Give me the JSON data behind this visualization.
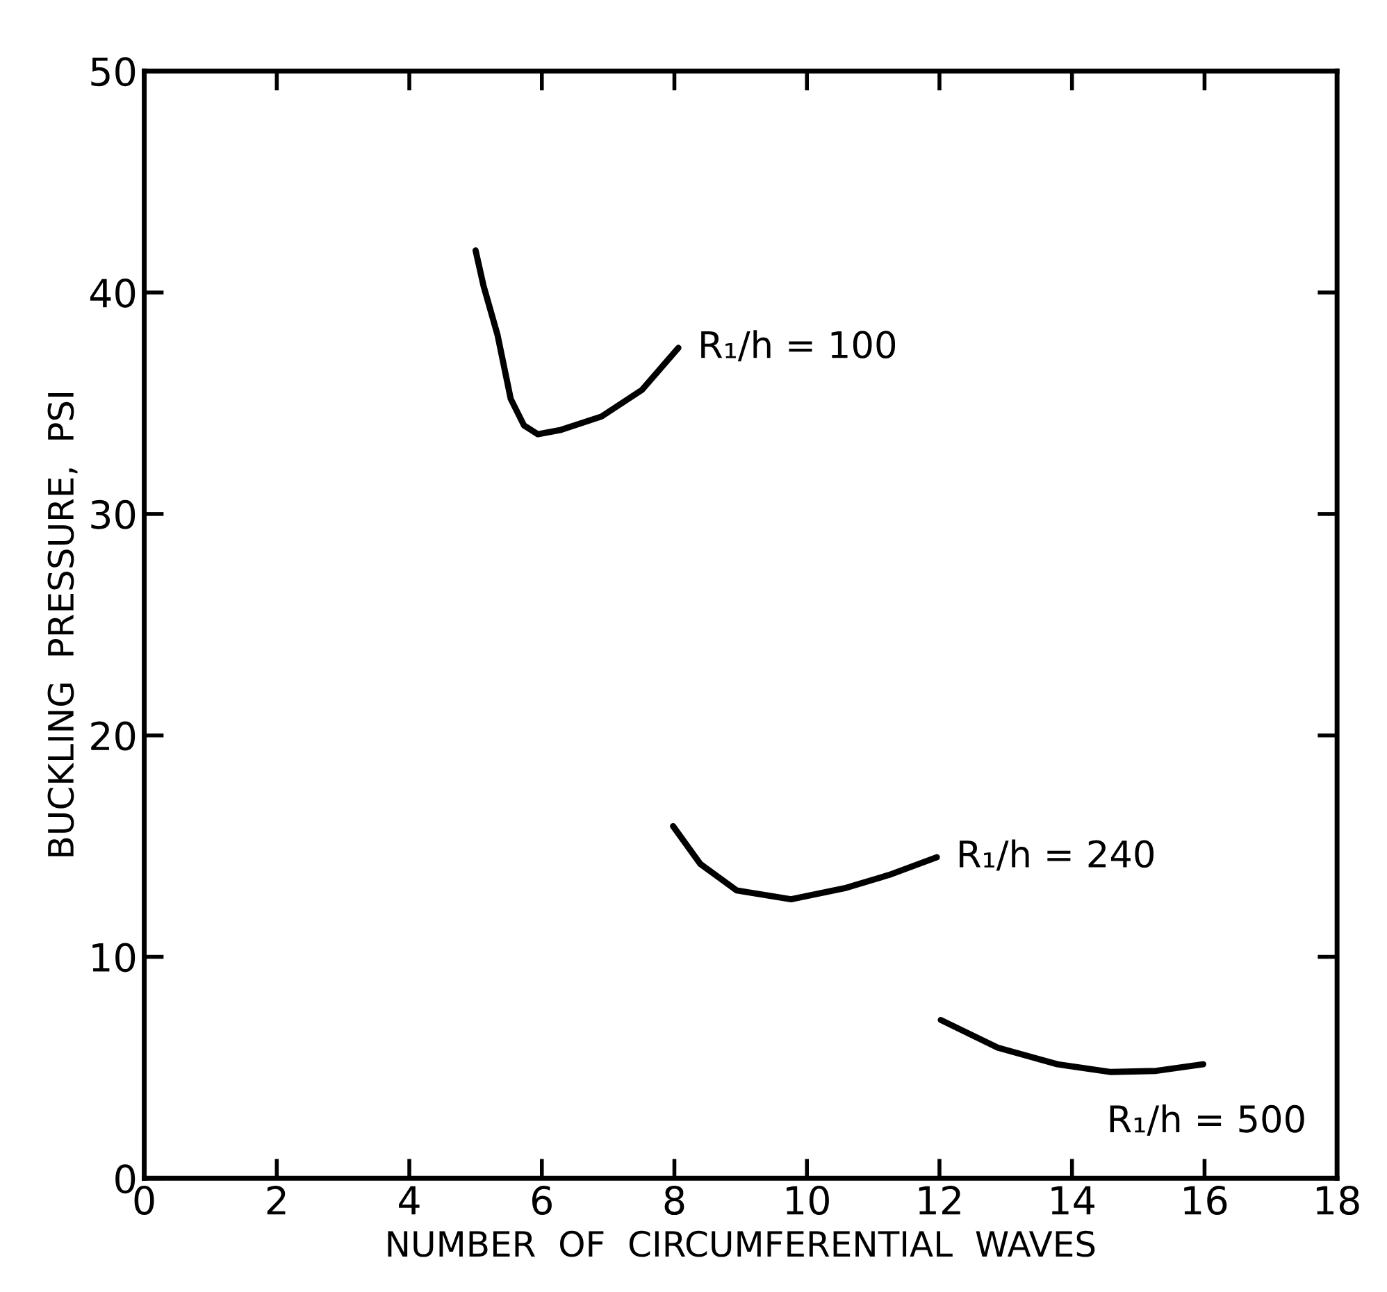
{
  "chart_data": {
    "type": "line",
    "xlabel": "NUMBER  OF  CIRCUMFERENTIAL  WAVES",
    "ylabel": "BUCKLING  PRESSURE,  PSI",
    "series": [
      {
        "color": "#000000",
        "x": [
          5.0,
          5.12,
          5.33,
          5.53,
          5.73,
          5.94,
          6.29,
          6.9,
          7.51,
          8.06
        ],
        "values": [
          41.9,
          40.3,
          38.1,
          35.2,
          34.0,
          33.6,
          33.8,
          34.4,
          35.6,
          37.5
        ]
      },
      {
        "color": "#000000",
        "x": [
          7.98,
          8.39,
          8.94,
          9.76,
          10.57,
          11.24,
          11.96
        ],
        "values": [
          15.9,
          14.2,
          13.0,
          12.6,
          13.1,
          13.7,
          14.5
        ]
      },
      {
        "color": "#000000",
        "x": [
          12.02,
          12.88,
          13.78,
          14.59,
          15.27,
          15.98
        ],
        "values": [
          7.15,
          5.9,
          5.15,
          4.8,
          4.85,
          5.15
        ]
      }
    ],
    "annotations": [
      {
        "text": "R₁/h = 100",
        "x": 8.06,
        "y": 37.5
      },
      {
        "text": "R₁/h = 240",
        "x": 11.96,
        "y": 14.5
      },
      {
        "text": "R₁/h = 500",
        "x": 15.98,
        "y": 5.15
      }
    ],
    "xlim": [
      0,
      18
    ],
    "xticks": [
      0,
      2,
      4,
      6,
      8,
      10,
      12,
      14,
      16,
      18
    ],
    "ylim": [
      0,
      50
    ],
    "yticks": [
      0,
      10,
      20,
      30,
      40,
      50
    ],
    "grid": false,
    "legend": false,
    "marker": "none",
    "line_style": "solid"
  }
}
